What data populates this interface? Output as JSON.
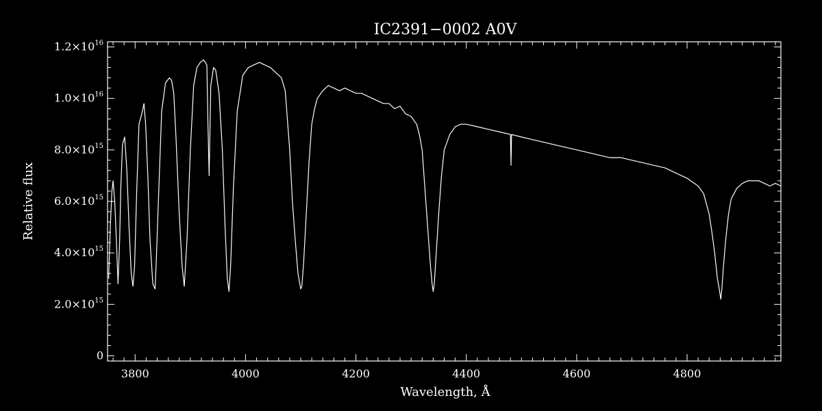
{
  "chart_data": {
    "type": "line",
    "title": "IC2391−0002  A0V",
    "xlabel": "Wavelength, Å",
    "ylabel": "Relative flux",
    "xlim": [
      3750,
      4970
    ],
    "ylim": [
      -200000000000000.0,
      1.22e+16
    ],
    "grid": false,
    "x_ticks": [
      3800,
      4000,
      4200,
      4400,
      4600,
      4800
    ],
    "x_tick_labels": [
      "3800",
      "4000",
      "4200",
      "4400",
      "4600",
      "4800"
    ],
    "y_ticks": [
      0,
      2000000000000000.0,
      4000000000000000.0,
      6000000000000000.0,
      8000000000000000.0,
      1e+16,
      1.2e+16
    ],
    "y_tick_labels": [
      {
        "mantissa": "0",
        "exponent": ""
      },
      {
        "mantissa": "2.0×10",
        "exponent": "15"
      },
      {
        "mantissa": "4.0×10",
        "exponent": "15"
      },
      {
        "mantissa": "6.0×10",
        "exponent": "15"
      },
      {
        "mantissa": "8.0×10",
        "exponent": "15"
      },
      {
        "mantissa": "1.0×10",
        "exponent": "16"
      },
      {
        "mantissa": "1.2×10",
        "exponent": "16"
      }
    ],
    "series": [
      {
        "x": [
          3752,
          3755,
          3758,
          3760,
          3763,
          3766,
          3769,
          3772,
          3774,
          3777,
          3781,
          3785,
          3789,
          3793,
          3796,
          3799,
          3803,
          3807,
          3812,
          3816,
          3819,
          3823,
          3827,
          3832,
          3836,
          3838,
          3843,
          3848,
          3855,
          3862,
          3866,
          3870,
          3874,
          3880,
          3885,
          3889,
          3894,
          3900,
          3906,
          3912,
          3918,
          3924,
          3930,
          3932,
          3934,
          3937,
          3942,
          3946,
          3952,
          3958,
          3963,
          3967,
          3970,
          3973,
          3978,
          3985,
          3995,
          4005,
          4015,
          4025,
          4035,
          4045,
          4055,
          4065,
          4072,
          4080,
          4085,
          4090,
          4095,
          4100,
          4102,
          4105,
          4110,
          4115,
          4120,
          4125,
          4130,
          4140,
          4150,
          4160,
          4170,
          4180,
          4190,
          4200,
          4210,
          4220,
          4230,
          4240,
          4250,
          4260,
          4270,
          4280,
          4290,
          4300,
          4310,
          4315,
          4320,
          4325,
          4330,
          4335,
          4338,
          4340,
          4342,
          4345,
          4350,
          4355,
          4360,
          4370,
          4380,
          4390,
          4400,
          4420,
          4440,
          4460,
          4480,
          4481,
          4482,
          4500,
          4520,
          4540,
          4560,
          4580,
          4600,
          4620,
          4640,
          4660,
          4680,
          4700,
          4720,
          4740,
          4760,
          4780,
          4800,
          4820,
          4830,
          4840,
          4845,
          4850,
          4855,
          4859,
          4861,
          4863,
          4866,
          4870,
          4875,
          4880,
          4890,
          4900,
          4910,
          4920,
          4930,
          4940,
          4950,
          4960,
          4970
        ],
        "y": [
          3000000000000000.0,
          5000000000000000.0,
          6400000000000000.0,
          6800000000000000.0,
          6000000000000000.0,
          4500000000000000.0,
          2800000000000000.0,
          4500000000000000.0,
          6500000000000000.0,
          8200000000000000.0,
          8500000000000000.0,
          7200000000000000.0,
          5000000000000000.0,
          3200000000000000.0,
          2700000000000000.0,
          3500000000000000.0,
          6500000000000000.0,
          9000000000000000.0,
          9400000000000000.0,
          9800000000000000.0,
          9000000000000000.0,
          7000000000000000.0,
          4500000000000000.0,
          2800000000000000.0,
          2600000000000000.0,
          3500000000000000.0,
          6500000000000000.0,
          9500000000000000.0,
          1.06e+16,
          1.08e+16,
          1.07e+16,
          1.02e+16,
          8500000000000000.0,
          5500000000000000.0,
          3500000000000000.0,
          2700000000000000.0,
          4500000000000000.0,
          8000000000000000.0,
          1.05e+16,
          1.12e+16,
          1.14e+16,
          1.15e+16,
          1.13e+16,
          9000000000000000.0,
          7000000000000000.0,
          1.05e+16,
          1.12e+16,
          1.11e+16,
          1.02e+16,
          8000000000000000.0,
          5000000000000000.0,
          3000000000000000.0,
          2500000000000000.0,
          3500000000000000.0,
          6500000000000000.0,
          9500000000000000.0,
          1.09e+16,
          1.12e+16,
          1.13e+16,
          1.14e+16,
          1.13e+16,
          1.12e+16,
          1.1e+16,
          1.08e+16,
          1.03e+16,
          8000000000000000.0,
          6000000000000000.0,
          4500000000000000.0,
          3200000000000000.0,
          2600000000000000.0,
          2700000000000000.0,
          3500000000000000.0,
          5500000000000000.0,
          7500000000000000.0,
          9000000000000000.0,
          9600000000000000.0,
          1e+16,
          1.03e+16,
          1.05e+16,
          1.04e+16,
          1.03e+16,
          1.04e+16,
          1.03e+16,
          1.02e+16,
          1.02e+16,
          1.01e+16,
          1e+16,
          9900000000000000.0,
          9800000000000000.0,
          9800000000000000.0,
          9600000000000000.0,
          9700000000000000.0,
          9400000000000000.0,
          9300000000000000.0,
          9000000000000000.0,
          8600000000000000.0,
          8000000000000000.0,
          6500000000000000.0,
          5000000000000000.0,
          3500000000000000.0,
          2800000000000000.0,
          2500000000000000.0,
          2800000000000000.0,
          3800000000000000.0,
          5500000000000000.0,
          7000000000000000.0,
          8000000000000000.0,
          8600000000000000.0,
          8900000000000000.0,
          9000000000000000.0,
          9000000000000000.0,
          8900000000000000.0,
          8800000000000000.0,
          8700000000000000.0,
          8600000000000000.0,
          7400000000000000.0,
          8600000000000000.0,
          8500000000000000.0,
          8400000000000000.0,
          8300000000000000.0,
          8200000000000000.0,
          8100000000000000.0,
          8000000000000000.0,
          7900000000000000.0,
          7800000000000000.0,
          7700000000000000.0,
          7700000000000000.0,
          7600000000000000.0,
          7500000000000000.0,
          7400000000000000.0,
          7300000000000000.0,
          7100000000000000.0,
          6900000000000000.0,
          6600000000000000.0,
          6300000000000000.0,
          5500000000000000.0,
          4800000000000000.0,
          4000000000000000.0,
          3000000000000000.0,
          2500000000000000.0,
          2200000000000000.0,
          2600000000000000.0,
          3500000000000000.0,
          4500000000000000.0,
          5500000000000000.0,
          6100000000000000.0,
          6500000000000000.0,
          6700000000000000.0,
          6800000000000000.0,
          6800000000000000.0,
          6800000000000000.0,
          6700000000000000.0,
          6600000000000000.0,
          6700000000000000.0,
          6600000000000000.0
        ]
      }
    ]
  }
}
